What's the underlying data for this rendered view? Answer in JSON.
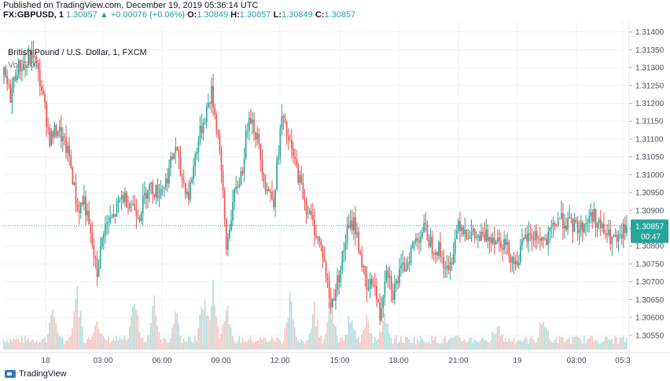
{
  "header": {
    "published": "Published on TradingView.com, December 19, 2019 05:36:14 UTC",
    "symbol": "FX:GBPUSD, 1",
    "last": "1.30857",
    "change_arrow": "▲",
    "change": "+0.00076 (+0.06%)",
    "o_label": "O:",
    "o_value": "1.30849",
    "h_label": "H:",
    "h_value": "1.30857",
    "l_label": "L:",
    "l_value": "1.30849",
    "c_label": "C:",
    "c_value": "1.30857"
  },
  "legend": {
    "title": "British Pound / U.S. Dollar, 1, FXCM",
    "volume": "Vol (20)"
  },
  "price_tag": {
    "price": "1.30857",
    "countdown": "00:47"
  },
  "footer": {
    "brand": "TradingView",
    "brand_icon": "tradingview-logo-icon"
  },
  "colors": {
    "up": "#26a69a",
    "down": "#ef5350",
    "vol_up": "#b2dfdb",
    "vol_down": "#f7c5c3",
    "price_line": "#26a69a",
    "grid": "#f0f3fa",
    "axis_text": "#4c525e"
  },
  "chart_data": {
    "type": "candlestick",
    "symbol": "FX:GBPUSD",
    "title": "British Pound / U.S. Dollar, 1, FXCM",
    "ylim": [
      1.3051,
      1.3143
    ],
    "y_ticks": [
      "1.31400",
      "1.31350",
      "1.31300",
      "1.31250",
      "1.31200",
      "1.31150",
      "1.31100",
      "1.31050",
      "1.31000",
      "1.30950",
      "1.30900",
      "1.30850",
      "1.30800",
      "1.30750",
      "1.30700",
      "1.30650",
      "1.30600",
      "1.30550"
    ],
    "x_ticks": [
      "18",
      "03:00",
      "06:00",
      "09:00",
      "12:00",
      "15:00",
      "18:00",
      "21:00",
      "19",
      "03:00",
      "05:3"
    ],
    "last_price": 1.30857,
    "anchors": [
      [
        0,
        1.3128
      ],
      [
        4,
        1.3122
      ],
      [
        8,
        1.313
      ],
      [
        14,
        1.3131
      ],
      [
        18,
        1.3134
      ],
      [
        23,
        1.3124
      ],
      [
        28,
        1.311
      ],
      [
        33,
        1.3113
      ],
      [
        40,
        1.3105
      ],
      [
        45,
        1.309
      ],
      [
        49,
        1.3093
      ],
      [
        57,
        1.3072
      ],
      [
        61,
        1.3085
      ],
      [
        67,
        1.3088
      ],
      [
        72,
        1.3094
      ],
      [
        78,
        1.3092
      ],
      [
        83,
        1.3089
      ],
      [
        88,
        1.3097
      ],
      [
        94,
        1.3095
      ],
      [
        99,
        1.3098
      ],
      [
        105,
        1.3108
      ],
      [
        108,
        1.31
      ],
      [
        113,
        1.3094
      ],
      [
        118,
        1.3108
      ],
      [
        122,
        1.3115
      ],
      [
        127,
        1.3123
      ],
      [
        132,
        1.3108
      ],
      [
        136,
        1.3079
      ],
      [
        140,
        1.3092
      ],
      [
        146,
        1.3102
      ],
      [
        150,
        1.3118
      ],
      [
        155,
        1.311
      ],
      [
        160,
        1.3097
      ],
      [
        165,
        1.3093
      ],
      [
        170,
        1.3116
      ],
      [
        175,
        1.3108
      ],
      [
        180,
        1.31
      ],
      [
        185,
        1.3091
      ],
      [
        190,
        1.3085
      ],
      [
        195,
        1.3078
      ],
      [
        200,
        1.3063
      ],
      [
        205,
        1.3072
      ],
      [
        210,
        1.3084
      ],
      [
        214,
        1.3087
      ],
      [
        218,
        1.3078
      ],
      [
        222,
        1.3067
      ],
      [
        226,
        1.3071
      ],
      [
        230,
        1.306
      ],
      [
        234,
        1.3075
      ],
      [
        238,
        1.3067
      ],
      [
        242,
        1.3072
      ],
      [
        246,
        1.3075
      ],
      [
        251,
        1.3081
      ],
      [
        257,
        1.3085
      ],
      [
        262,
        1.308
      ],
      [
        266,
        1.3079
      ],
      [
        272,
        1.3072
      ],
      [
        278,
        1.3087
      ],
      [
        283,
        1.3084
      ],
      [
        290,
        1.3082
      ],
      [
        298,
        1.3083
      ],
      [
        306,
        1.3081
      ],
      [
        313,
        1.3075
      ],
      [
        319,
        1.3082
      ],
      [
        325,
        1.3083
      ],
      [
        332,
        1.3081
      ],
      [
        339,
        1.3088
      ],
      [
        346,
        1.3086
      ],
      [
        353,
        1.3085
      ],
      [
        360,
        1.3089
      ],
      [
        365,
        1.3085
      ],
      [
        371,
        1.3082
      ],
      [
        376,
        1.3081
      ],
      [
        381,
        1.3086
      ]
    ],
    "volume_spikes": [
      [
        30,
        0.6
      ],
      [
        45,
        0.9
      ],
      [
        57,
        0.4
      ],
      [
        80,
        0.7
      ],
      [
        92,
        0.7
      ],
      [
        105,
        0.5
      ],
      [
        122,
        0.8
      ],
      [
        128,
        1.0
      ],
      [
        136,
        0.6
      ],
      [
        175,
        0.8
      ],
      [
        190,
        0.6
      ],
      [
        200,
        0.8
      ],
      [
        212,
        0.4
      ],
      [
        222,
        0.5
      ],
      [
        233,
        0.4
      ],
      [
        302,
        0.3
      ],
      [
        330,
        0.4
      ]
    ]
  }
}
